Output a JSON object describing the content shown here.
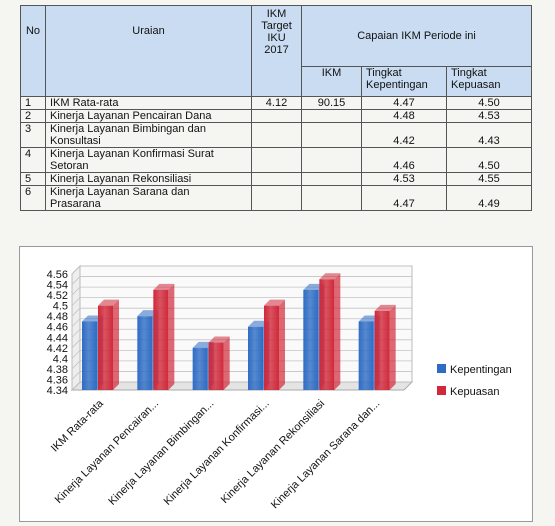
{
  "table": {
    "headers": {
      "no": "No",
      "uraian": "Uraian",
      "ikm_target": [
        "IKM",
        "Target",
        "IKU",
        "2017"
      ],
      "capaian": "Capaian IKM Periode ini",
      "ikm": "IKM",
      "kepentingan": [
        "Tingkat",
        "Kepentingan"
      ],
      "kepuasan": [
        "Tingkat",
        "Kepuasan"
      ]
    },
    "rows": [
      {
        "no": "1",
        "uraian": [
          "IKM Rata-rata"
        ],
        "target": "4.12",
        "ikm": "90.15",
        "kepentingan": "4.47",
        "kepuasan": "4.50"
      },
      {
        "no": "2",
        "uraian": [
          "Kinerja Layanan Pencairan Dana"
        ],
        "target": "",
        "ikm": "",
        "kepentingan": "4.48",
        "kepuasan": "4.53"
      },
      {
        "no": "3",
        "uraian": [
          "Kinerja Layanan Bimbingan dan",
          "Konsultasi"
        ],
        "target": "",
        "ikm": "",
        "kepentingan": "4.42",
        "kepuasan": "4.43"
      },
      {
        "no": "4",
        "uraian": [
          "Kinerja Layanan Konfirmasi Surat",
          "Setoran"
        ],
        "target": "",
        "ikm": "",
        "kepentingan": "4.46",
        "kepuasan": "4.50"
      },
      {
        "no": "5",
        "uraian": [
          "Kinerja Layanan Rekonsiliasi"
        ],
        "target": "",
        "ikm": "",
        "kepentingan": "4.53",
        "kepuasan": "4.55"
      },
      {
        "no": "6",
        "uraian": [
          "Kinerja Layanan Sarana dan",
          "Prasarana"
        ],
        "target": "",
        "ikm": "",
        "kepentingan": "4.47",
        "kepuasan": "4.49"
      }
    ]
  },
  "chart_data": {
    "type": "bar",
    "categories": [
      "IKM Rata-rata",
      "Kinerja Layanan Pencairan...",
      "Kinerja Layanan Bimbingan...",
      "Kinerja Layanan Konfirmasi...",
      "Kinerja Layanan Rekonsiliasi",
      "Kinerja Layanan Sarana dan..."
    ],
    "series": [
      {
        "name": "Kepentingan",
        "values": [
          4.47,
          4.48,
          4.42,
          4.46,
          4.53,
          4.47
        ],
        "color": "#2e6cc4"
      },
      {
        "name": "Kepuasan",
        "values": [
          4.5,
          4.53,
          4.43,
          4.5,
          4.55,
          4.49
        ],
        "color": "#d0293a"
      }
    ],
    "ylim": [
      4.34,
      4.56
    ],
    "yticks": [
      "4.56",
      "4.54",
      "4.52",
      "4.5",
      "4.48",
      "4.46",
      "4.44",
      "4.42",
      "4.4",
      "4.38",
      "4.36",
      "4.34"
    ],
    "grid": true,
    "legend": "right",
    "title": "",
    "xlabel": "",
    "ylabel": ""
  }
}
